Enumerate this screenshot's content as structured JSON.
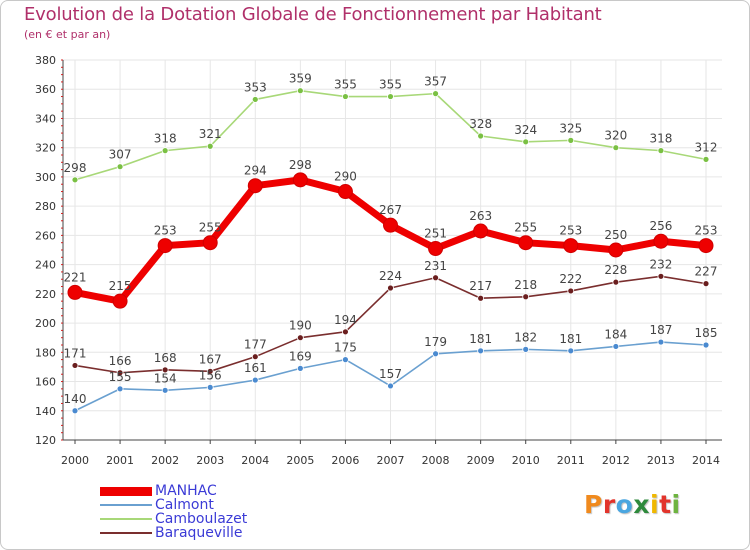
{
  "title": "Evolution de la Dotation Globale de Fonctionnement par Habitant",
  "subtitle": "(en € et par an)",
  "logo": {
    "letters": [
      "P",
      "r",
      "o",
      "x",
      "i",
      "t",
      "i"
    ],
    "colors": [
      "#f08a1e",
      "#e2342c",
      "#4aa6e0",
      "#2e8a3c",
      "#f0b800",
      "#e2342c",
      "#6db33f"
    ]
  },
  "chart_data": {
    "type": "line",
    "title": "Evolution de la Dotation Globale de Fonctionnement par Habitant",
    "ylabel": "(en € et par an)",
    "x": [
      "2000",
      "2001",
      "2002",
      "2003",
      "2004",
      "2005",
      "2006",
      "2007",
      "2008",
      "2009",
      "2010",
      "2011",
      "2012",
      "2013",
      "2014"
    ],
    "ylim": [
      120,
      380
    ],
    "yticks": [
      120,
      140,
      160,
      180,
      200,
      220,
      240,
      260,
      280,
      300,
      320,
      340,
      360,
      380
    ],
    "grid": true,
    "legend_position": "bottom-left",
    "series": [
      {
        "name": "MANHAC",
        "color": "#ee0000",
        "marker_color": "#ee0000",
        "emphasis": true,
        "values": [
          221,
          215,
          253,
          255,
          294,
          298,
          290,
          267,
          251,
          263,
          255,
          253,
          250,
          256,
          253
        ]
      },
      {
        "name": "Calmont",
        "color": "#6aa0d0",
        "marker_color": "#4a8ad0",
        "values": [
          140,
          155,
          154,
          156,
          161,
          169,
          175,
          157,
          179,
          181,
          182,
          181,
          184,
          187,
          185
        ]
      },
      {
        "name": "Camboulazet",
        "color": "#a8d878",
        "marker_color": "#7ac043",
        "values": [
          298,
          307,
          318,
          321,
          353,
          359,
          355,
          355,
          357,
          328,
          324,
          325,
          320,
          318,
          312
        ]
      },
      {
        "name": "Baraqueville",
        "color": "#7a2e2e",
        "marker_color": "#6a1e1e",
        "values": [
          171,
          166,
          168,
          167,
          177,
          190,
          194,
          224,
          231,
          217,
          218,
          222,
          228,
          232,
          227
        ]
      }
    ]
  }
}
